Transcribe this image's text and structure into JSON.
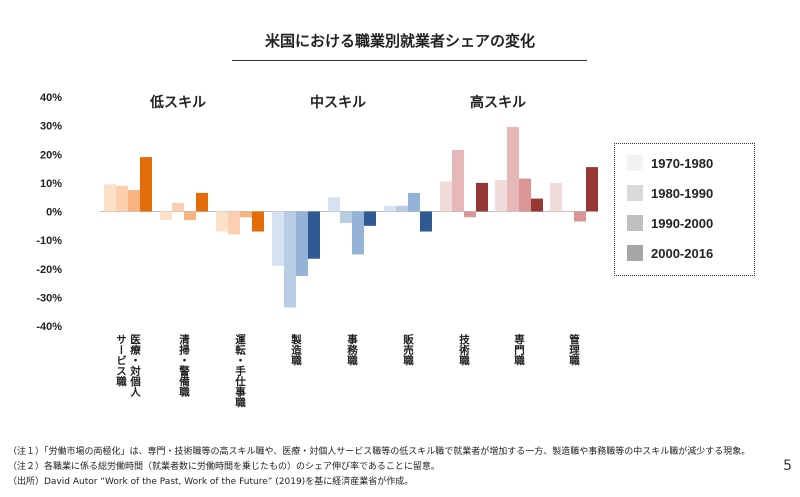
{
  "page": {
    "title": "米国における職業別就業者シェアの変化",
    "page_number": "5"
  },
  "chart_data": {
    "type": "bar",
    "title": "米国における職業別就業者シェアの変化",
    "ylim": [
      -40,
      40
    ],
    "y_ticks": [
      "40%",
      "30%",
      "20%",
      "10%",
      "0%",
      "-10%",
      "-20%",
      "-30%",
      "-40%"
    ],
    "y_tick_values": [
      40,
      30,
      20,
      10,
      0,
      -10,
      -20,
      -30,
      -40
    ],
    "grid": false,
    "legend_position": "right",
    "series": [
      {
        "name": "1970-1980",
        "values": [
          9.5,
          -3,
          -7,
          -19,
          5,
          2,
          10.5,
          11,
          10
        ]
      },
      {
        "name": "1980-1990",
        "values": [
          9,
          3,
          -8,
          -33.5,
          -4,
          2,
          21.5,
          29.5,
          0
        ]
      },
      {
        "name": "1990-2000",
        "values": [
          7.5,
          -3,
          -2,
          -22.5,
          -15,
          6.5,
          -2,
          11.5,
          -3.5
        ]
      },
      {
        "name": "2000-2016",
        "values": [
          19,
          6.5,
          -7,
          -16.5,
          -5,
          -7,
          10,
          4.5,
          15.5
        ]
      }
    ],
    "groups": [
      {
        "label": "低スキル",
        "categories": [
          "医療・対個人サービス職",
          "清掃・警備職",
          "運転・手仕事職"
        ]
      },
      {
        "label": "中スキル",
        "categories": [
          "製造職",
          "事務職",
          "販売職"
        ]
      },
      {
        "label": "高スキル",
        "categories": [
          "技術職",
          "専門職",
          "管理職"
        ]
      }
    ],
    "category_lines": [
      [
        "医療・対個人",
        "サービス職"
      ],
      [
        "清掃・警備職"
      ],
      [
        "運転・手仕事職"
      ],
      [
        "製造職"
      ],
      [
        "事務職"
      ],
      [
        "販売職"
      ],
      [
        "技術職"
      ],
      [
        "専門職"
      ],
      [
        "管理職"
      ]
    ],
    "colors": {
      "low": [
        "#fde0c8",
        "#fcd0ae",
        "#f9b37f",
        "#e46c0a"
      ],
      "mid": [
        "#d6e2f0",
        "#b8cce4",
        "#95b3d7",
        "#2f5a92"
      ],
      "high": [
        "#f2dcdb",
        "#e6b9b8",
        "#d99694",
        "#953735"
      ]
    },
    "legend_colors": [
      "#f2f2f2",
      "#d9d9d9",
      "#bfbfbf",
      "#a6a6a6"
    ]
  },
  "notes": [
    "（注１）「労働市場の両極化」は、専門・技術職等の高スキル職や、医療・対個人サービス職等の低スキル職で就業者が増加する一方、製造職や事務職等の中スキル職が減少する現象。",
    "（注２）各職業に係る総労働時間（就業者数に労働時間を乗じたもの）のシェア伸び率であることに留意。",
    "（出所）David Autor “Work of the Past, Work of the Future” (2019)を基に経済産業省が作成。"
  ]
}
